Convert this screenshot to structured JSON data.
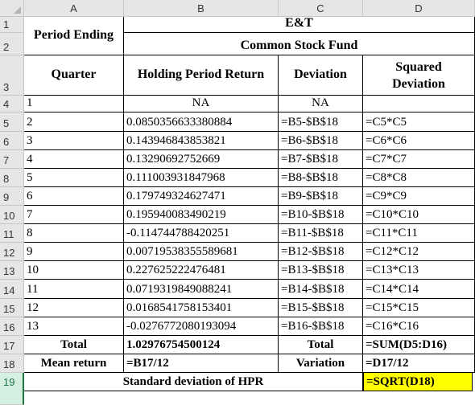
{
  "columns": [
    "A",
    "B",
    "C",
    "D"
  ],
  "rows": [
    "1",
    "2",
    "3",
    "4",
    "5",
    "6",
    "7",
    "8",
    "9",
    "10",
    "11",
    "12",
    "13",
    "14",
    "15",
    "16",
    "17",
    "18",
    "19"
  ],
  "header": {
    "period_ending": "Period Ending",
    "company": "E&T",
    "fund": "Common Stock Fund",
    "quarter": "Quarter",
    "hpr": "Holding Period Return",
    "deviation": "Deviation",
    "squared_line1": "Squared",
    "squared_line2": "Deviation"
  },
  "data_rows": [
    {
      "q": "1",
      "hpr": "NA",
      "dev": "NA",
      "sq": ""
    },
    {
      "q": "2",
      "hpr": "0.0850356633380884",
      "dev": "=B5-$B$18",
      "sq": "=C5*C5"
    },
    {
      "q": "3",
      "hpr": "0.143946843853821",
      "dev": "=B6-$B$18",
      "sq": "=C6*C6"
    },
    {
      "q": "4",
      "hpr": "0.13290692752669",
      "dev": "=B7-$B$18",
      "sq": "=C7*C7"
    },
    {
      "q": "5",
      "hpr": "0.111003931847968",
      "dev": "=B8-$B$18",
      "sq": "=C8*C8"
    },
    {
      "q": "6",
      "hpr": "0.179749324627471",
      "dev": "=B9-$B$18",
      "sq": "=C9*C9"
    },
    {
      "q": "7",
      "hpr": "0.195940083490219",
      "dev": "=B10-$B$18",
      "sq": "=C10*C10"
    },
    {
      "q": "8",
      "hpr": "-0.114744788420251",
      "dev": "=B11-$B$18",
      "sq": "=C11*C11"
    },
    {
      "q": "9",
      "hpr": "0.00719538355589681",
      "dev": "=B12-$B$18",
      "sq": "=C12*C12"
    },
    {
      "q": "10",
      "hpr": "0.227625222476481",
      "dev": "=B13-$B$18",
      "sq": "=C13*C13"
    },
    {
      "q": "11",
      "hpr": "0.0719319849088241",
      "dev": "=B14-$B$18",
      "sq": "=C14*C14"
    },
    {
      "q": "12",
      "hpr": "0.0168541758153401",
      "dev": "=B15-$B$18",
      "sq": "=C15*C15"
    },
    {
      "q": "13",
      "hpr": "-0.0276772080193094",
      "dev": "=B16-$B$18",
      "sq": "=C16*C16"
    }
  ],
  "totals": {
    "total_label": "Total",
    "hpr_total": "1.02976754500124",
    "dev_total_label": "Total",
    "sq_total": "=SUM(D5:D16)"
  },
  "mean": {
    "label": "Mean return",
    "value": "=B17/12",
    "variation_label": "Variation",
    "variation_value": "=D17/12"
  },
  "stdev": {
    "label": "Standard deviation of HPR",
    "value": "=SQRT(D18)"
  },
  "colors": {
    "highlight": "#ffff00",
    "selected_row": "#217346"
  }
}
